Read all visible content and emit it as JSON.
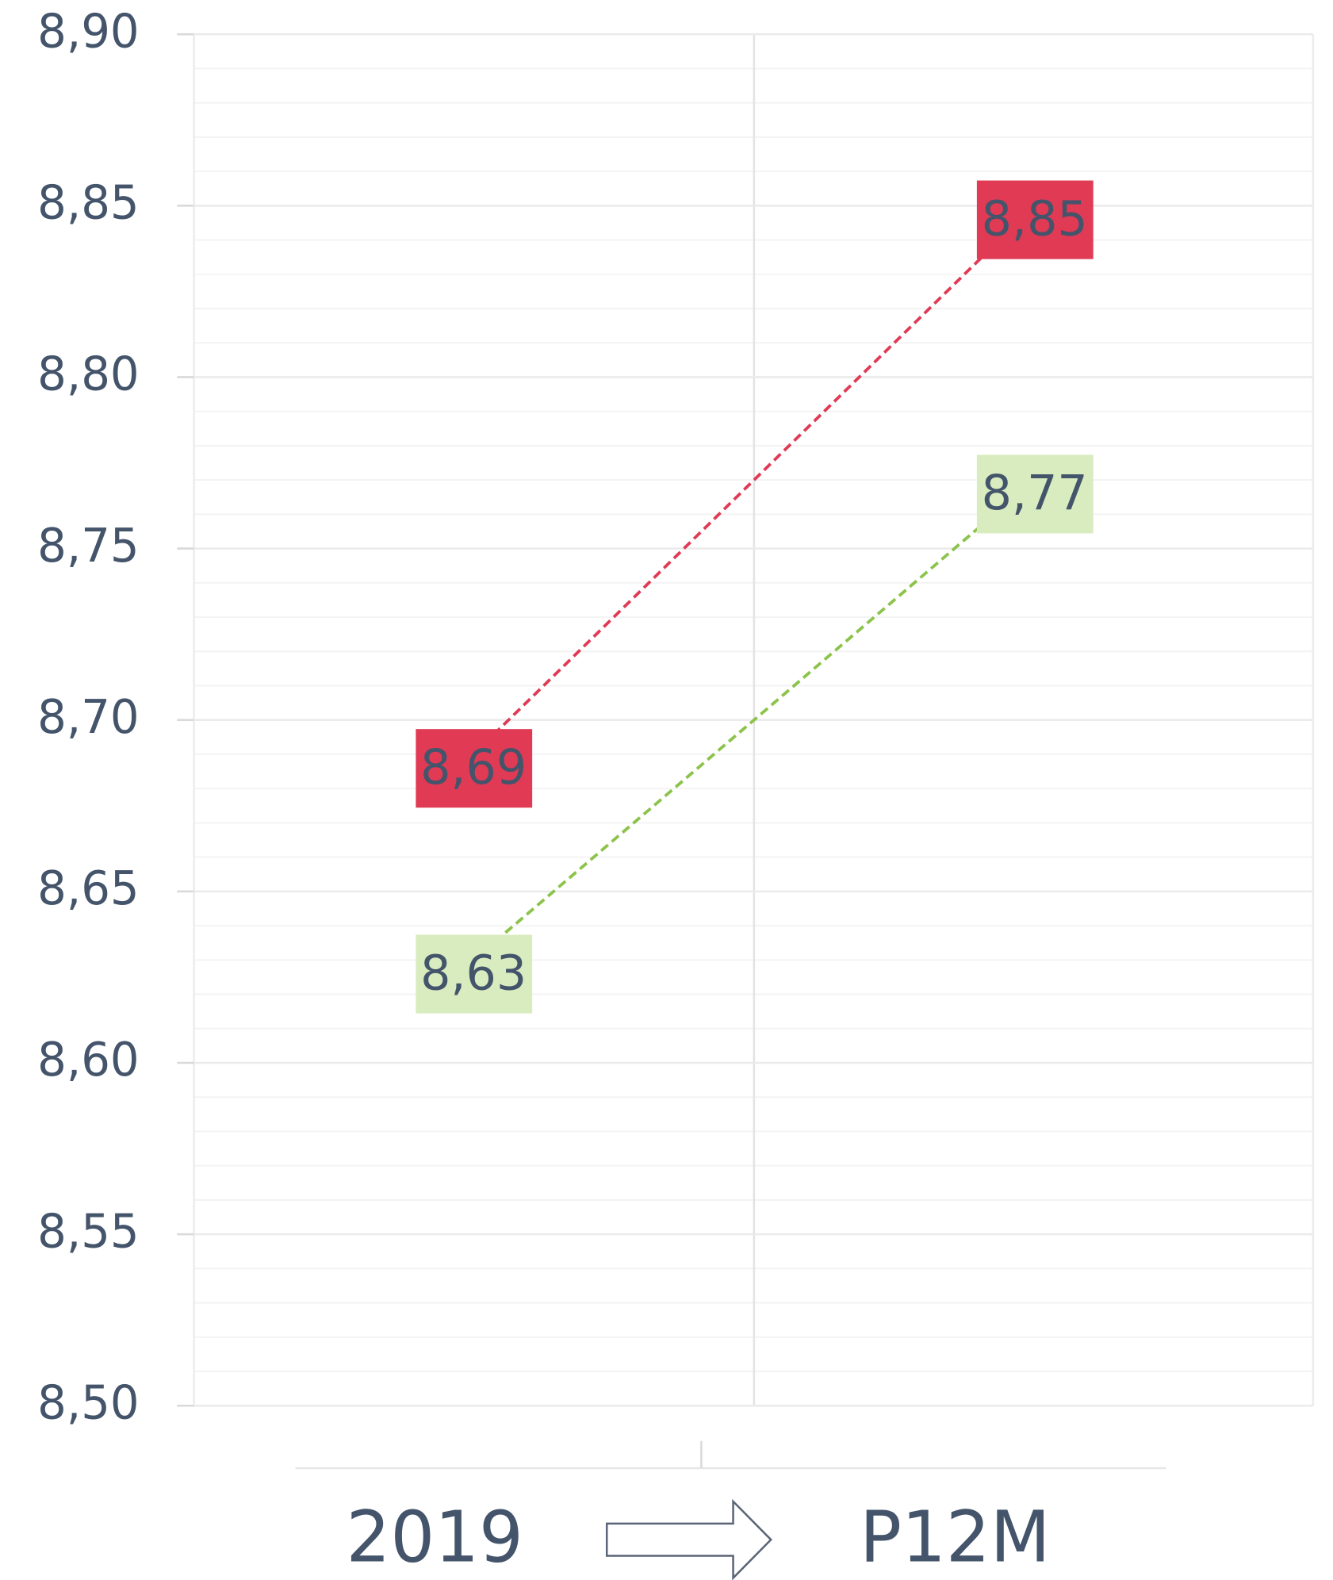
{
  "chart_data": {
    "type": "line",
    "categories": [
      "2019",
      "P12M"
    ],
    "series": [
      {
        "color": "#e03a55",
        "label_text_color": "#ffffff",
        "values": [
          8.69,
          8.85
        ],
        "value_labels": [
          "8,69",
          "8,85"
        ]
      },
      {
        "color": "#8cc34a",
        "label_fill": "#d8ecbf",
        "label_text_color": "#44546a",
        "values": [
          8.63,
          8.77
        ],
        "value_labels": [
          "8,63",
          "8,77"
        ]
      }
    ],
    "ylim": [
      8.5,
      8.9
    ],
    "yticks": [
      {
        "value": 8.5,
        "label": "8,50"
      },
      {
        "value": 8.55,
        "label": "8,55"
      },
      {
        "value": 8.6,
        "label": "8,60"
      },
      {
        "value": 8.65,
        "label": "8,65"
      },
      {
        "value": 8.7,
        "label": "8,70"
      },
      {
        "value": 8.75,
        "label": "8,75"
      },
      {
        "value": 8.8,
        "label": "8,80"
      },
      {
        "value": 8.85,
        "label": "8,85"
      },
      {
        "value": 8.9,
        "label": "8,90"
      }
    ],
    "grid": true
  }
}
